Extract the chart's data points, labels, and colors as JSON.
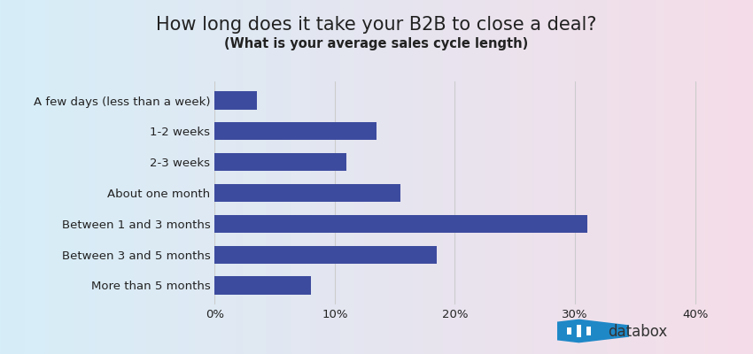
{
  "title": "How long does it take your B2B to close a deal?",
  "subtitle": "(What is your average sales cycle length)",
  "categories": [
    "A few days (less than a week)",
    "1-2 weeks",
    "2-3 weeks",
    "About one month",
    "Between 1 and 3 months",
    "Between 3 and 5 months",
    "More than 5 months"
  ],
  "values": [
    3.5,
    13.5,
    11.0,
    15.5,
    31.0,
    18.5,
    8.0
  ],
  "bar_color": "#3d4b9e",
  "xlim": [
    0,
    42
  ],
  "xticks": [
    0,
    10,
    20,
    30,
    40
  ],
  "xticklabels": [
    "0%",
    "10%",
    "20%",
    "30%",
    "40%"
  ],
  "title_fontsize": 15,
  "subtitle_fontsize": 10.5,
  "label_fontsize": 9.5,
  "tick_fontsize": 9.5,
  "bg_left_color": "#d6eef8",
  "bg_right_color": "#f5dde8",
  "grid_color": "#cccccc",
  "bar_height": 0.58,
  "logo_hex_color": "#1e88c7",
  "logo_text_color": "#333333"
}
